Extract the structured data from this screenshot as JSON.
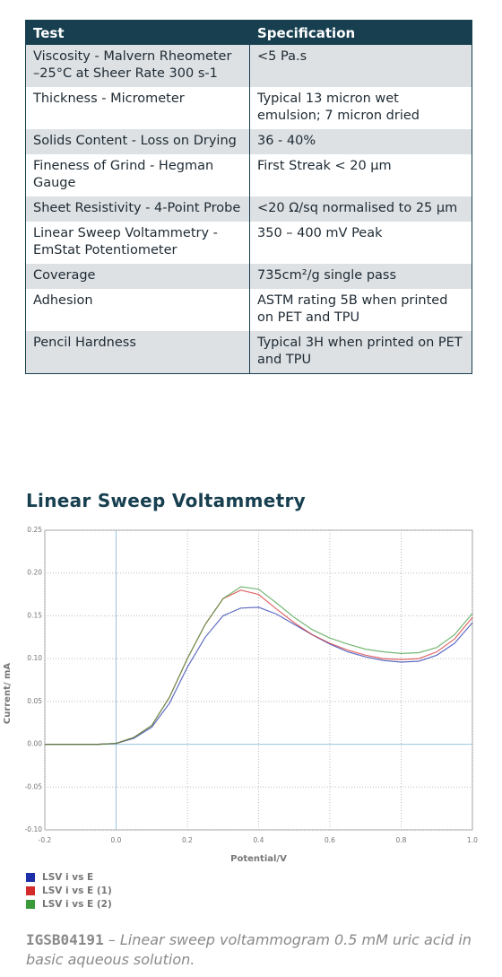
{
  "table": {
    "header": [
      "Test",
      "Specification"
    ],
    "rows": [
      [
        "Viscosity - Malvern Rheometer –25°C at Sheer Rate 300 s-1",
        "<5 Pa.s"
      ],
      [
        "Thickness - Micrometer",
        "Typical 13 micron wet emulsion; 7 micron dried"
      ],
      [
        "Solids Content - Loss on Drying",
        "36 - 40%"
      ],
      [
        "Fineness of Grind - Hegman Gauge",
        "First Streak < 20 µm"
      ],
      [
        "Sheet Resistivity - 4-Point Probe",
        "<20 Ω/sq normalised to 25 µm"
      ],
      [
        "Linear Sweep Voltammetry - EmStat Potentiometer",
        "350 – 400 mV Peak"
      ],
      [
        "Coverage",
        "735cm²/g single pass"
      ],
      [
        "Adhesion",
        "ASTM rating 5B when printed on PET and TPU"
      ],
      [
        "Pencil Hardness",
        "Typical 3H when printed on PET and TPU"
      ]
    ]
  },
  "heading": "Linear Sweep Voltammetry",
  "chart_data": {
    "type": "line",
    "x_label": "Potential/V",
    "y_label": "Current/ mA",
    "x": [
      -0.2,
      -0.15,
      -0.1,
      -0.05,
      0,
      0.05,
      0.1,
      0.15,
      0.2,
      0.25,
      0.3,
      0.35,
      0.4,
      0.45,
      0.5,
      0.55,
      0.6,
      0.65,
      0.7,
      0.75,
      0.8,
      0.85,
      0.9,
      0.95,
      1.0
    ],
    "series": [
      {
        "name": "LSV i vs E",
        "color": "#1c2fa8",
        "values": [
          0,
          0,
          0,
          0,
          0.001,
          0.007,
          0.02,
          0.048,
          0.09,
          0.125,
          0.15,
          0.159,
          0.16,
          0.152,
          0.14,
          0.128,
          0.117,
          0.108,
          0.102,
          0.098,
          0.096,
          0.097,
          0.104,
          0.118,
          0.142
        ]
      },
      {
        "name": "LSV i vs E (1)",
        "color": "#d32a2a",
        "values": [
          0,
          0,
          0,
          0,
          0.001,
          0.008,
          0.022,
          0.055,
          0.1,
          0.14,
          0.17,
          0.18,
          0.175,
          0.158,
          0.142,
          0.128,
          0.118,
          0.11,
          0.104,
          0.1,
          0.099,
          0.1,
          0.108,
          0.123,
          0.148
        ]
      },
      {
        "name": "LSV i vs E (2)",
        "color": "#3a9a3a",
        "values": [
          0,
          0,
          0,
          0,
          0.001,
          0.008,
          0.022,
          0.055,
          0.1,
          0.14,
          0.17,
          0.184,
          0.181,
          0.165,
          0.148,
          0.134,
          0.124,
          0.117,
          0.111,
          0.108,
          0.106,
          0.107,
          0.113,
          0.128,
          0.153
        ]
      }
    ],
    "xlim": [
      -0.2,
      1.0
    ],
    "xticks": [
      -0.2,
      {
        "value": 0,
        "label": "0.0"
      },
      0.2,
      0.4,
      0.6,
      0.8,
      {
        "value": 1,
        "label": "1.0"
      }
    ],
    "ylim": [
      -0.1,
      0.25
    ],
    "yticks": [
      {
        "value": -0.1,
        "label": "-0.10"
      },
      -0.05,
      {
        "value": 0,
        "label": "0.00"
      },
      0.05,
      {
        "value": 0.1,
        "label": "0.10"
      },
      0.15,
      {
        "value": 0.2,
        "label": "0.20"
      },
      0.25
    ],
    "grid": true
  },
  "caption": {
    "code": "IGSB04191",
    "text": "– Linear sweep voltammogram 0.5 mM uric acid in basic aqueous solution."
  }
}
